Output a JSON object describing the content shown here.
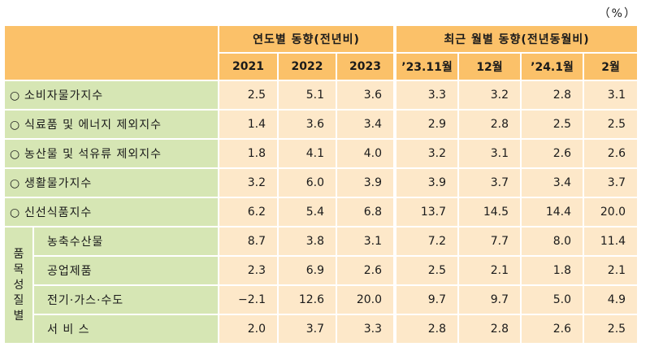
{
  "unit": "（%）",
  "header": {
    "annual_group": "연도별 동향(전년비)",
    "monthly_group": "최근 월별 동향(전년동월비)",
    "columns": [
      "2021",
      "2022",
      "2023",
      "’23.11월",
      "12월",
      "’24.1월",
      "2월"
    ]
  },
  "rows": [
    {
      "bullet": "○",
      "label": "소비자물가지수",
      "values": [
        "2.5",
        "5.1",
        "3.6",
        "3.3",
        "3.2",
        "2.8",
        "3.1"
      ]
    },
    {
      "bullet": "○",
      "label": "식료품 및 에너지 제외지수",
      "values": [
        "1.4",
        "3.6",
        "3.4",
        "2.9",
        "2.8",
        "2.5",
        "2.5"
      ]
    },
    {
      "bullet": "○",
      "label": "농산물 및 석유류 제외지수",
      "values": [
        "1.8",
        "4.1",
        "4.0",
        "3.2",
        "3.1",
        "2.6",
        "2.6"
      ]
    },
    {
      "bullet": "○",
      "label": "생활물가지수",
      "values": [
        "3.2",
        "6.0",
        "3.9",
        "3.9",
        "3.7",
        "3.4",
        "3.7"
      ]
    },
    {
      "bullet": "○",
      "label": "신선식품지수",
      "values": [
        "6.2",
        "5.4",
        "6.8",
        "13.7",
        "14.5",
        "14.4",
        "20.0"
      ]
    }
  ],
  "category": {
    "label_chars": [
      "품",
      "목",
      "성",
      "질",
      "별"
    ],
    "rows": [
      {
        "label": "농축수산물",
        "values": [
          "8.7",
          "3.8",
          "3.1",
          "7.2",
          "7.7",
          "8.0",
          "11.4"
        ]
      },
      {
        "label": "공업제품",
        "values": [
          "2.3",
          "6.9",
          "2.6",
          "2.5",
          "2.1",
          "1.8",
          "2.1"
        ]
      },
      {
        "label": "전기·가스·수도",
        "values": [
          "−2.1",
          "12.6",
          "20.0",
          "9.7",
          "9.7",
          "5.0",
          "4.9"
        ]
      },
      {
        "label": "서 비 스",
        "values": [
          "2.0",
          "3.7",
          "3.3",
          "2.8",
          "2.8",
          "2.6",
          "2.5"
        ]
      }
    ]
  }
}
